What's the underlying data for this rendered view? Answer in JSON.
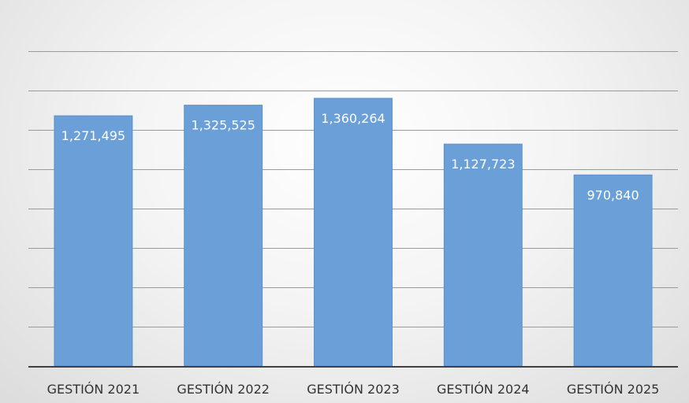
{
  "chart_data": {
    "type": "bar",
    "categories": [
      "GESTIÓN 2021",
      "GESTIÓN 2022",
      "GESTIÓN 2023",
      "GESTIÓN 2024",
      "GESTIÓN 2025"
    ],
    "values": [
      1271495,
      1325525,
      1360264,
      1127723,
      970840
    ],
    "value_labels": [
      "1,271,495",
      "1,325,525",
      "1,360,264",
      "1,127,723",
      "970,840"
    ],
    "title": "",
    "xlabel": "",
    "ylabel": "",
    "ylim": [
      0,
      1700000
    ],
    "grid": true,
    "legend": "none",
    "colors": {
      "bar": "#6a9fd8",
      "bar_edge": "#5a8fcf",
      "grid": "#9a9a9a",
      "axis": "#404040"
    }
  }
}
